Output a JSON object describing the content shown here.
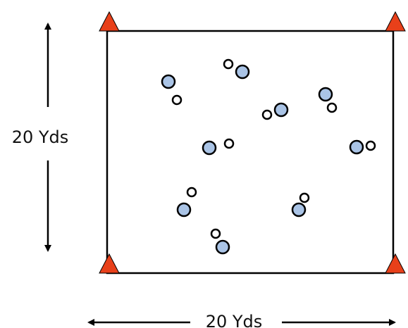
{
  "labels": {
    "vertical": "20 Yds",
    "horizontal": "20 Yds"
  },
  "colors": {
    "cone": "#e8401a",
    "player_fill": "#aac4e6",
    "defender_fill": "#ffffff",
    "stroke": "#000000"
  }
}
